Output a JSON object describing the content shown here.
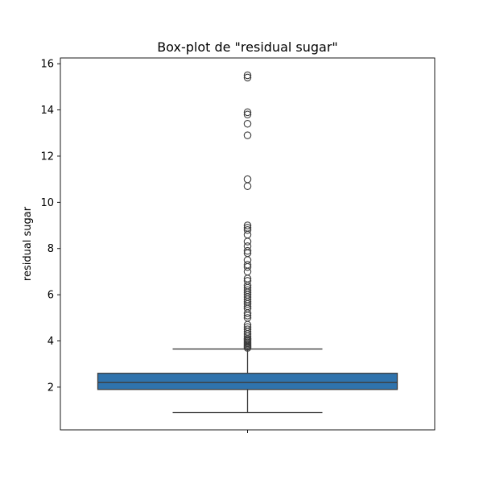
{
  "chart_data": {
    "type": "boxplot",
    "title": "Box-plot de \"residual sugar\"",
    "xlabel": "",
    "ylabel": "residual sugar",
    "ylim": [
      0.15,
      16.25
    ],
    "yticks": [
      2,
      4,
      6,
      8,
      10,
      12,
      14,
      16
    ],
    "grid": false,
    "box": {
      "whisker_low": 0.9,
      "q1": 1.9,
      "median": 2.2,
      "q3": 2.6,
      "whisker_high": 3.65
    },
    "outliers": [
      3.7,
      3.75,
      3.8,
      3.85,
      3.9,
      3.95,
      4.0,
      4.05,
      4.1,
      4.2,
      4.3,
      4.4,
      4.5,
      4.6,
      4.7,
      5.0,
      5.1,
      5.2,
      5.4,
      5.5,
      5.6,
      5.7,
      5.8,
      5.9,
      6.0,
      6.1,
      6.2,
      6.3,
      6.4,
      6.6,
      6.7,
      7.0,
      7.2,
      7.3,
      7.5,
      7.8,
      7.9,
      8.1,
      8.3,
      8.6,
      8.8,
      8.9,
      9.0,
      10.7,
      11.0,
      12.9,
      13.4,
      13.8,
      13.9,
      15.4,
      15.5
    ],
    "colors": {
      "box_fill": "#2f73ad",
      "line": "#3d3d3d"
    }
  }
}
